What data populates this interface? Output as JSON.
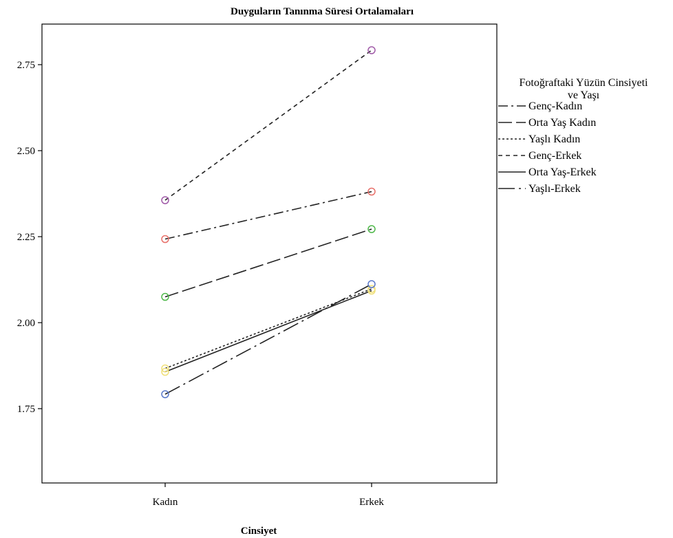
{
  "chart_data": {
    "type": "line",
    "title": "Duyguların Tanınma Süresi Ortalamaları",
    "xlabel": "Cinsiyet",
    "ylabel": "",
    "categories": [
      "Kadın",
      "Erkek"
    ],
    "ylim": [
      1.55,
      2.85
    ],
    "yticks": [
      {
        "value": 1.75,
        "label": "1.75"
      },
      {
        "value": 2.0,
        "label": "2.00"
      },
      {
        "value": 2.25,
        "label": "2.25"
      },
      {
        "value": 2.5,
        "label": "2.50"
      },
      {
        "value": 2.75,
        "label": "2.75"
      }
    ],
    "grid": false,
    "legend": {
      "title_lines": [
        "Fotoğraftaki Yüzün Cinsiyeti",
        "ve Yaşı"
      ],
      "placement": "right"
    },
    "series": [
      {
        "name": "Genç-Kadın",
        "values": [
          2.243,
          2.381
        ],
        "dash": "dash-dot",
        "marker_color": "#e8706a"
      },
      {
        "name": "Orta Yaş Kadın",
        "values": [
          2.075,
          2.272
        ],
        "dash": "long-dash",
        "marker_color": "#4fb84a"
      },
      {
        "name": "Yaşlı Kadın",
        "values": [
          1.867,
          2.098
        ],
        "dash": "dotted",
        "marker_color": "#f0e07a"
      },
      {
        "name": "Genç-Erkek",
        "values": [
          2.356,
          2.792
        ],
        "dash": "short-dash",
        "marker_color": "#a05aa8"
      },
      {
        "name": "Orta Yaş-Erkek",
        "values": [
          1.857,
          2.093
        ],
        "dash": "solid",
        "marker_color": "#f0e07a"
      },
      {
        "name": "Yaşlı-Erkek",
        "values": [
          1.792,
          2.112
        ],
        "dash": "long-dash-dot",
        "marker_color": "#5a78c8"
      }
    ]
  }
}
